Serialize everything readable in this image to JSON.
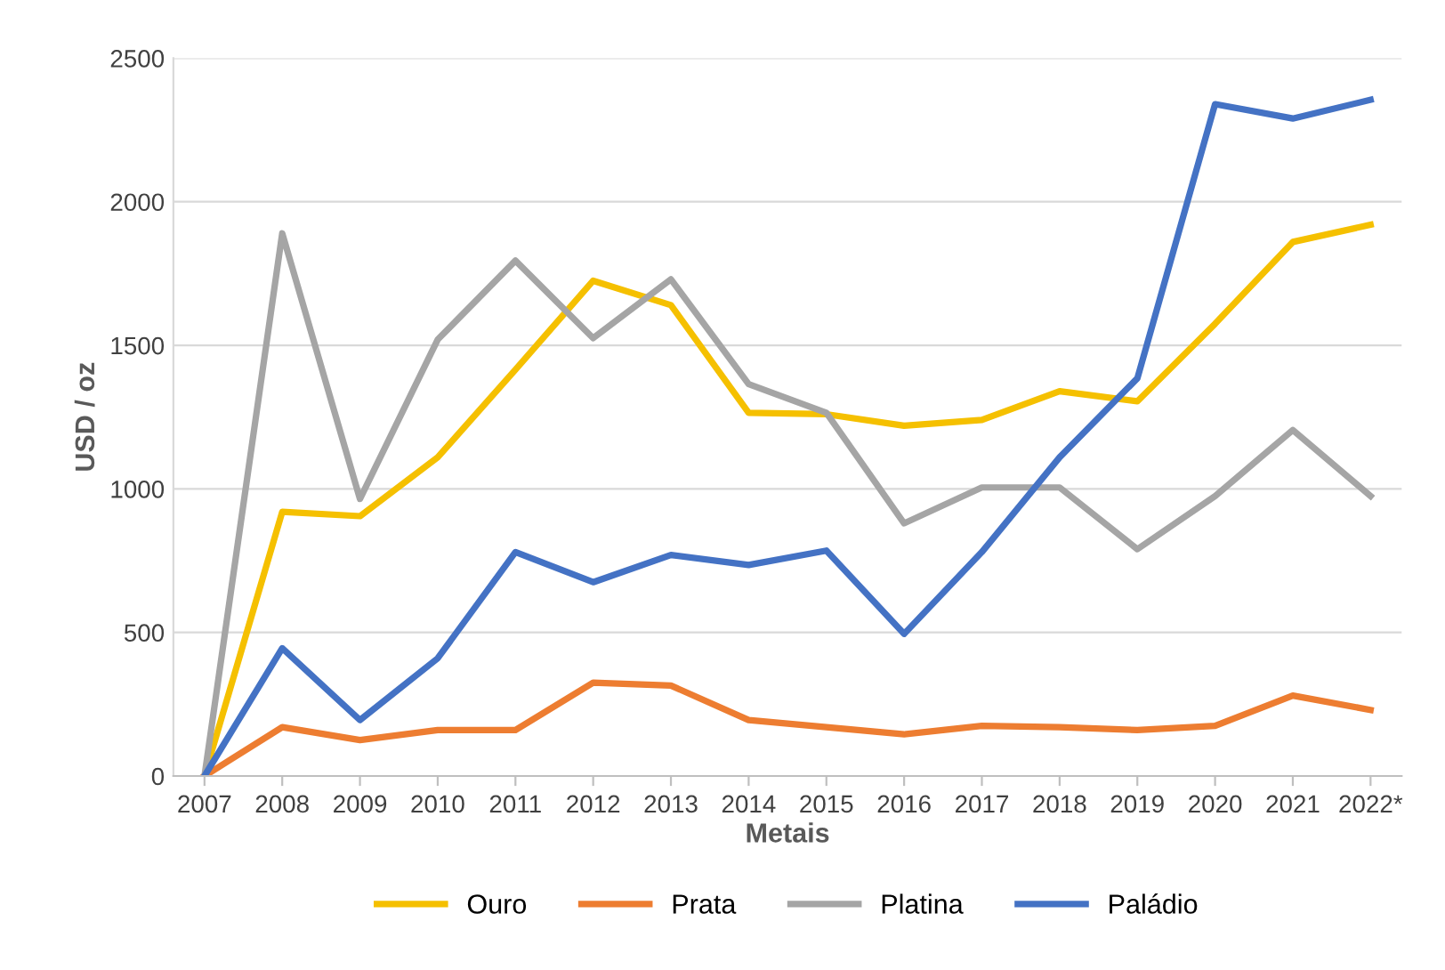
{
  "chart_data": {
    "type": "line",
    "xlabel": "Metais",
    "ylabel": "USD / oz",
    "categories": [
      "2007",
      "2008",
      "2009",
      "2010",
      "2011",
      "2012",
      "2013",
      "2014",
      "2015",
      "2016",
      "2017",
      "2018",
      "2019",
      "2020",
      "2021",
      "2022*"
    ],
    "series": [
      {
        "name": "Ouro",
        "color": "#f5c000",
        "values": [
          0,
          920,
          905,
          1110,
          1415,
          1725,
          1640,
          1265,
          1260,
          1220,
          1240,
          1340,
          1305,
          1575,
          1860,
          1920
        ]
      },
      {
        "name": "Prata",
        "color": "#ed7d31",
        "values": [
          0,
          170,
          125,
          160,
          160,
          325,
          315,
          195,
          170,
          145,
          175,
          170,
          160,
          175,
          280,
          230
        ]
      },
      {
        "name": "Platina",
        "color": "#a5a5a5",
        "values": [
          0,
          1890,
          965,
          1520,
          1795,
          1525,
          1730,
          1365,
          1265,
          880,
          1005,
          1005,
          790,
          975,
          1205,
          975
        ]
      },
      {
        "name": "Paládio",
        "color": "#4472c4",
        "values": [
          0,
          445,
          195,
          410,
          780,
          675,
          770,
          735,
          785,
          495,
          780,
          1110,
          1385,
          2340,
          2290,
          2355
        ]
      }
    ],
    "ylim": [
      0,
      2500
    ],
    "yticks": [
      0,
      500,
      1000,
      1500,
      2000,
      2500
    ],
    "grid": "y",
    "legend": "bottom",
    "marker": "none",
    "line_style": "solid"
  }
}
